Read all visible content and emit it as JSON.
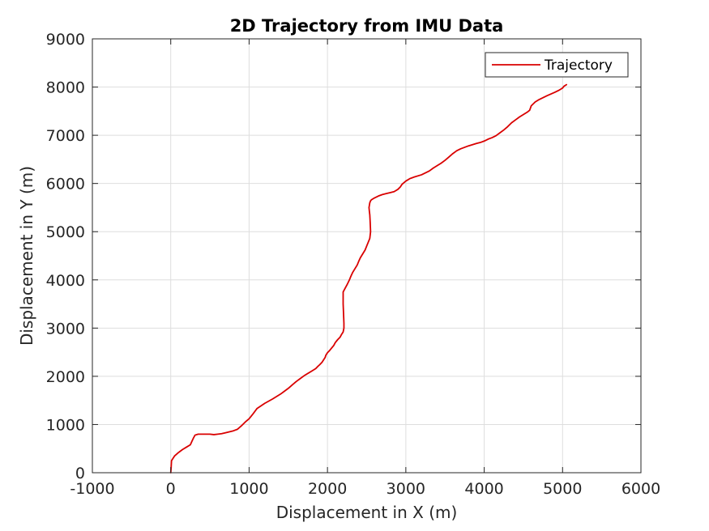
{
  "chart_data": {
    "type": "line",
    "title": "2D Trajectory from IMU Data",
    "xlabel": "Displacement in X (m)",
    "ylabel": "Displacement in Y (m)",
    "xlim": [
      -1000,
      6000
    ],
    "ylim": [
      0,
      9000
    ],
    "xticks": [
      -1000,
      0,
      1000,
      2000,
      3000,
      4000,
      5000,
      6000
    ],
    "yticks": [
      0,
      1000,
      2000,
      3000,
      4000,
      5000,
      6000,
      7000,
      8000,
      9000
    ],
    "xtick_labels": [
      "-1000",
      "0",
      "1000",
      "2000",
      "3000",
      "4000",
      "5000",
      "6000"
    ],
    "ytick_labels": [
      "0",
      "1000",
      "2000",
      "3000",
      "4000",
      "5000",
      "6000",
      "7000",
      "8000",
      "9000"
    ],
    "grid": true,
    "legend_position": "top-right",
    "series": [
      {
        "name": "Trajectory",
        "color": "#d90000",
        "x": [
          0,
          5,
          10,
          50,
          100,
          150,
          200,
          250,
          270,
          290,
          310,
          350,
          400,
          450,
          500,
          550,
          600,
          650,
          700,
          800,
          850,
          900,
          950,
          1000,
          1020,
          1050,
          1100,
          1200,
          1300,
          1350,
          1400,
          1450,
          1500,
          1550,
          1600,
          1650,
          1700,
          1800,
          1850,
          1880,
          1900,
          1930,
          1950,
          1970,
          1980,
          2000,
          2030,
          2050,
          2080,
          2100,
          2130,
          2160,
          2180,
          2200,
          2210,
          2210,
          2205,
          2200,
          2200,
          2220,
          2250,
          2280,
          2300,
          2320,
          2350,
          2380,
          2400,
          2420,
          2450,
          2480,
          2500,
          2520,
          2540,
          2550,
          2545,
          2540,
          2535,
          2530,
          2535,
          2540,
          2550,
          2560,
          2600,
          2650,
          2700,
          2750,
          2800,
          2850,
          2870,
          2900,
          2930,
          2950,
          3000,
          3050,
          3100,
          3200,
          3250,
          3300,
          3350,
          3400,
          3450,
          3500,
          3550,
          3600,
          3650,
          3700,
          3800,
          3900,
          3950,
          4000,
          4050,
          4100,
          4150,
          4200,
          4250,
          4300,
          4350,
          4400,
          4450,
          4500,
          4550,
          4580,
          4600,
          4650,
          4700,
          4800,
          4900,
          4950,
          5000,
          5020,
          5050
        ],
        "y": [
          0,
          100,
          250,
          350,
          420,
          480,
          530,
          580,
          650,
          720,
          780,
          800,
          800,
          800,
          800,
          790,
          800,
          810,
          830,
          870,
          900,
          970,
          1050,
          1120,
          1160,
          1220,
          1330,
          1440,
          1530,
          1580,
          1630,
          1690,
          1750,
          1820,
          1890,
          1950,
          2010,
          2110,
          2160,
          2210,
          2240,
          2290,
          2340,
          2390,
          2440,
          2490,
          2540,
          2580,
          2640,
          2700,
          2760,
          2810,
          2870,
          2920,
          3000,
          3100,
          3300,
          3500,
          3750,
          3810,
          3900,
          4000,
          4080,
          4150,
          4230,
          4310,
          4390,
          4460,
          4540,
          4620,
          4700,
          4780,
          4860,
          5000,
          5200,
          5350,
          5420,
          5500,
          5550,
          5600,
          5640,
          5660,
          5700,
          5740,
          5770,
          5790,
          5810,
          5830,
          5850,
          5880,
          5930,
          5980,
          6050,
          6100,
          6130,
          6180,
          6220,
          6260,
          6320,
          6370,
          6420,
          6480,
          6550,
          6620,
          6680,
          6720,
          6780,
          6830,
          6850,
          6880,
          6920,
          6950,
          6990,
          7050,
          7110,
          7180,
          7260,
          7320,
          7380,
          7430,
          7480,
          7520,
          7610,
          7690,
          7740,
          7820,
          7890,
          7930,
          7980,
          8020,
          8050
        ]
      }
    ]
  }
}
